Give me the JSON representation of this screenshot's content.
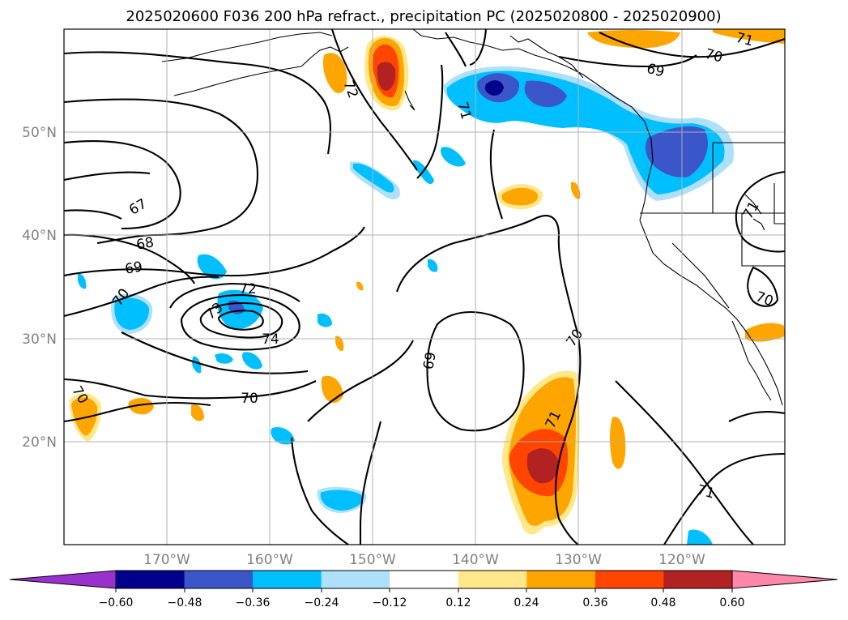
{
  "title": "2025020600 F036 200 hPa refract., precipitation PC (2025020800 - 2025020900)",
  "map": {
    "latitude_labels": [
      "50°N",
      "40°N",
      "30°N",
      "20°N"
    ],
    "longitude_labels": [
      "170°W",
      "160°W",
      "150°W",
      "140°W",
      "130°W",
      "120°W"
    ],
    "contour_labels": [
      "72",
      "71",
      "70",
      "71",
      "69",
      "67",
      "68",
      "69",
      "70",
      "72",
      "73",
      "74",
      "69",
      "70",
      "70",
      "71",
      "71",
      "71",
      "70",
      "70"
    ],
    "colors": {
      "contour": "#000000",
      "grid": "#b0b0b0",
      "land": "#000000"
    }
  },
  "colorbar": {
    "ticks": [
      "−0.60",
      "−0.48",
      "−0.36",
      "−0.24",
      "−0.12",
      "0.12",
      "0.24",
      "0.36",
      "0.48",
      "0.60"
    ],
    "bins": [
      "#9932cc",
      "#00008b",
      "#3a56c9",
      "#00bfff",
      "#afe0fa",
      "#ffffff",
      "#ffe88a",
      "#ffa500",
      "#ff4500",
      "#b22222",
      "#ff88aa"
    ]
  },
  "chart_data": {
    "type": "map",
    "title": "2025020600 F036 200 hPa refract., precipitation PC (2025020800 - 2025020900)",
    "lon_range": [
      -180,
      -110
    ],
    "lat_range": [
      10,
      60
    ],
    "colorbar_levels": [
      -0.6,
      -0.48,
      -0.36,
      -0.24,
      -0.12,
      0.12,
      0.24,
      0.36,
      0.48,
      0.6
    ],
    "contour_levels": [
      67,
      68,
      69,
      70,
      71,
      72,
      73,
      74
    ],
    "grid": true
  }
}
